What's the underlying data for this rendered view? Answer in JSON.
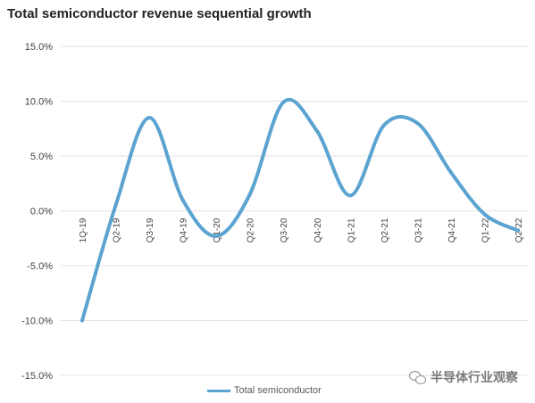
{
  "chart_data": {
    "type": "line",
    "title": "Total semiconductor revenue sequential growth",
    "xlabel": "",
    "ylabel": "",
    "categories": [
      "1Q-19",
      "Q2-19",
      "Q3-19",
      "Q4-19",
      "Q1-20",
      "Q2-20",
      "Q3-20",
      "Q4-20",
      "Q1-21",
      "Q2-21",
      "Q3-21",
      "Q4-21",
      "Q1-22",
      "Q2-22"
    ],
    "series": [
      {
        "name": "Total semiconductor",
        "color": "#5BA3D0",
        "values": [
          -10.0,
          0.5,
          8.5,
          1.0,
          -2.3,
          1.5,
          9.9,
          7.3,
          1.4,
          7.8,
          8.0,
          3.5,
          -0.3,
          -1.8
        ]
      }
    ],
    "ylim": [
      -15,
      15
    ],
    "yticks": [
      -15,
      -10,
      -5,
      0,
      5,
      10,
      15
    ],
    "ytick_labels": [
      "-15.0%",
      "-10.0%",
      "-5.0%",
      "0.0%",
      "5.0%",
      "10.0%",
      "15.0%"
    ],
    "grid": true,
    "legend_position": "bottom",
    "smooth": true
  },
  "watermark": {
    "icon": "wechat-icon",
    "text": "半导体行业观察"
  }
}
